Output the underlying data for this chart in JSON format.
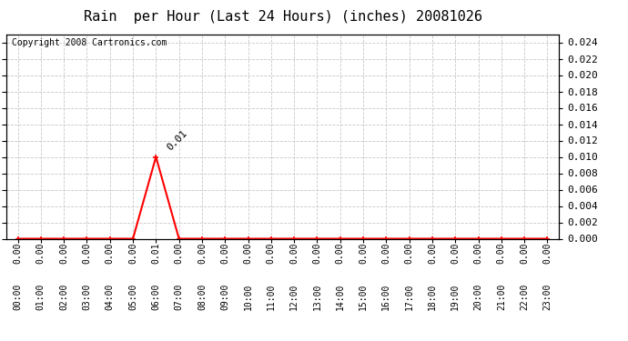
{
  "title": "Rain  per Hour (Last 24 Hours) (inches) 20081026",
  "copyright_text": "Copyright 2008 Cartronics.com",
  "hours": [
    0,
    1,
    2,
    3,
    4,
    5,
    6,
    7,
    8,
    9,
    10,
    11,
    12,
    13,
    14,
    15,
    16,
    17,
    18,
    19,
    20,
    21,
    22,
    23
  ],
  "values": [
    0,
    0,
    0,
    0,
    0,
    0,
    0.01,
    0,
    0,
    0,
    0,
    0,
    0,
    0,
    0,
    0,
    0,
    0,
    0,
    0,
    0,
    0,
    0,
    0
  ],
  "peak_hour": 6,
  "peak_value": 0.01,
  "peak_label": "0.01",
  "ylim_min": 0.0,
  "ylim_max": 0.025,
  "yticks": [
    0.0,
    0.002,
    0.004,
    0.006,
    0.008,
    0.01,
    0.012,
    0.014,
    0.016,
    0.018,
    0.02,
    0.022,
    0.024
  ],
  "line_color": "#ff0000",
  "background_color": "#ffffff",
  "grid_color": "#c8c8c8",
  "title_fontsize": 11,
  "copyright_fontsize": 7,
  "annotation_fontsize": 8,
  "tick_label_fontsize": 7,
  "right_ytick_fontsize": 8
}
